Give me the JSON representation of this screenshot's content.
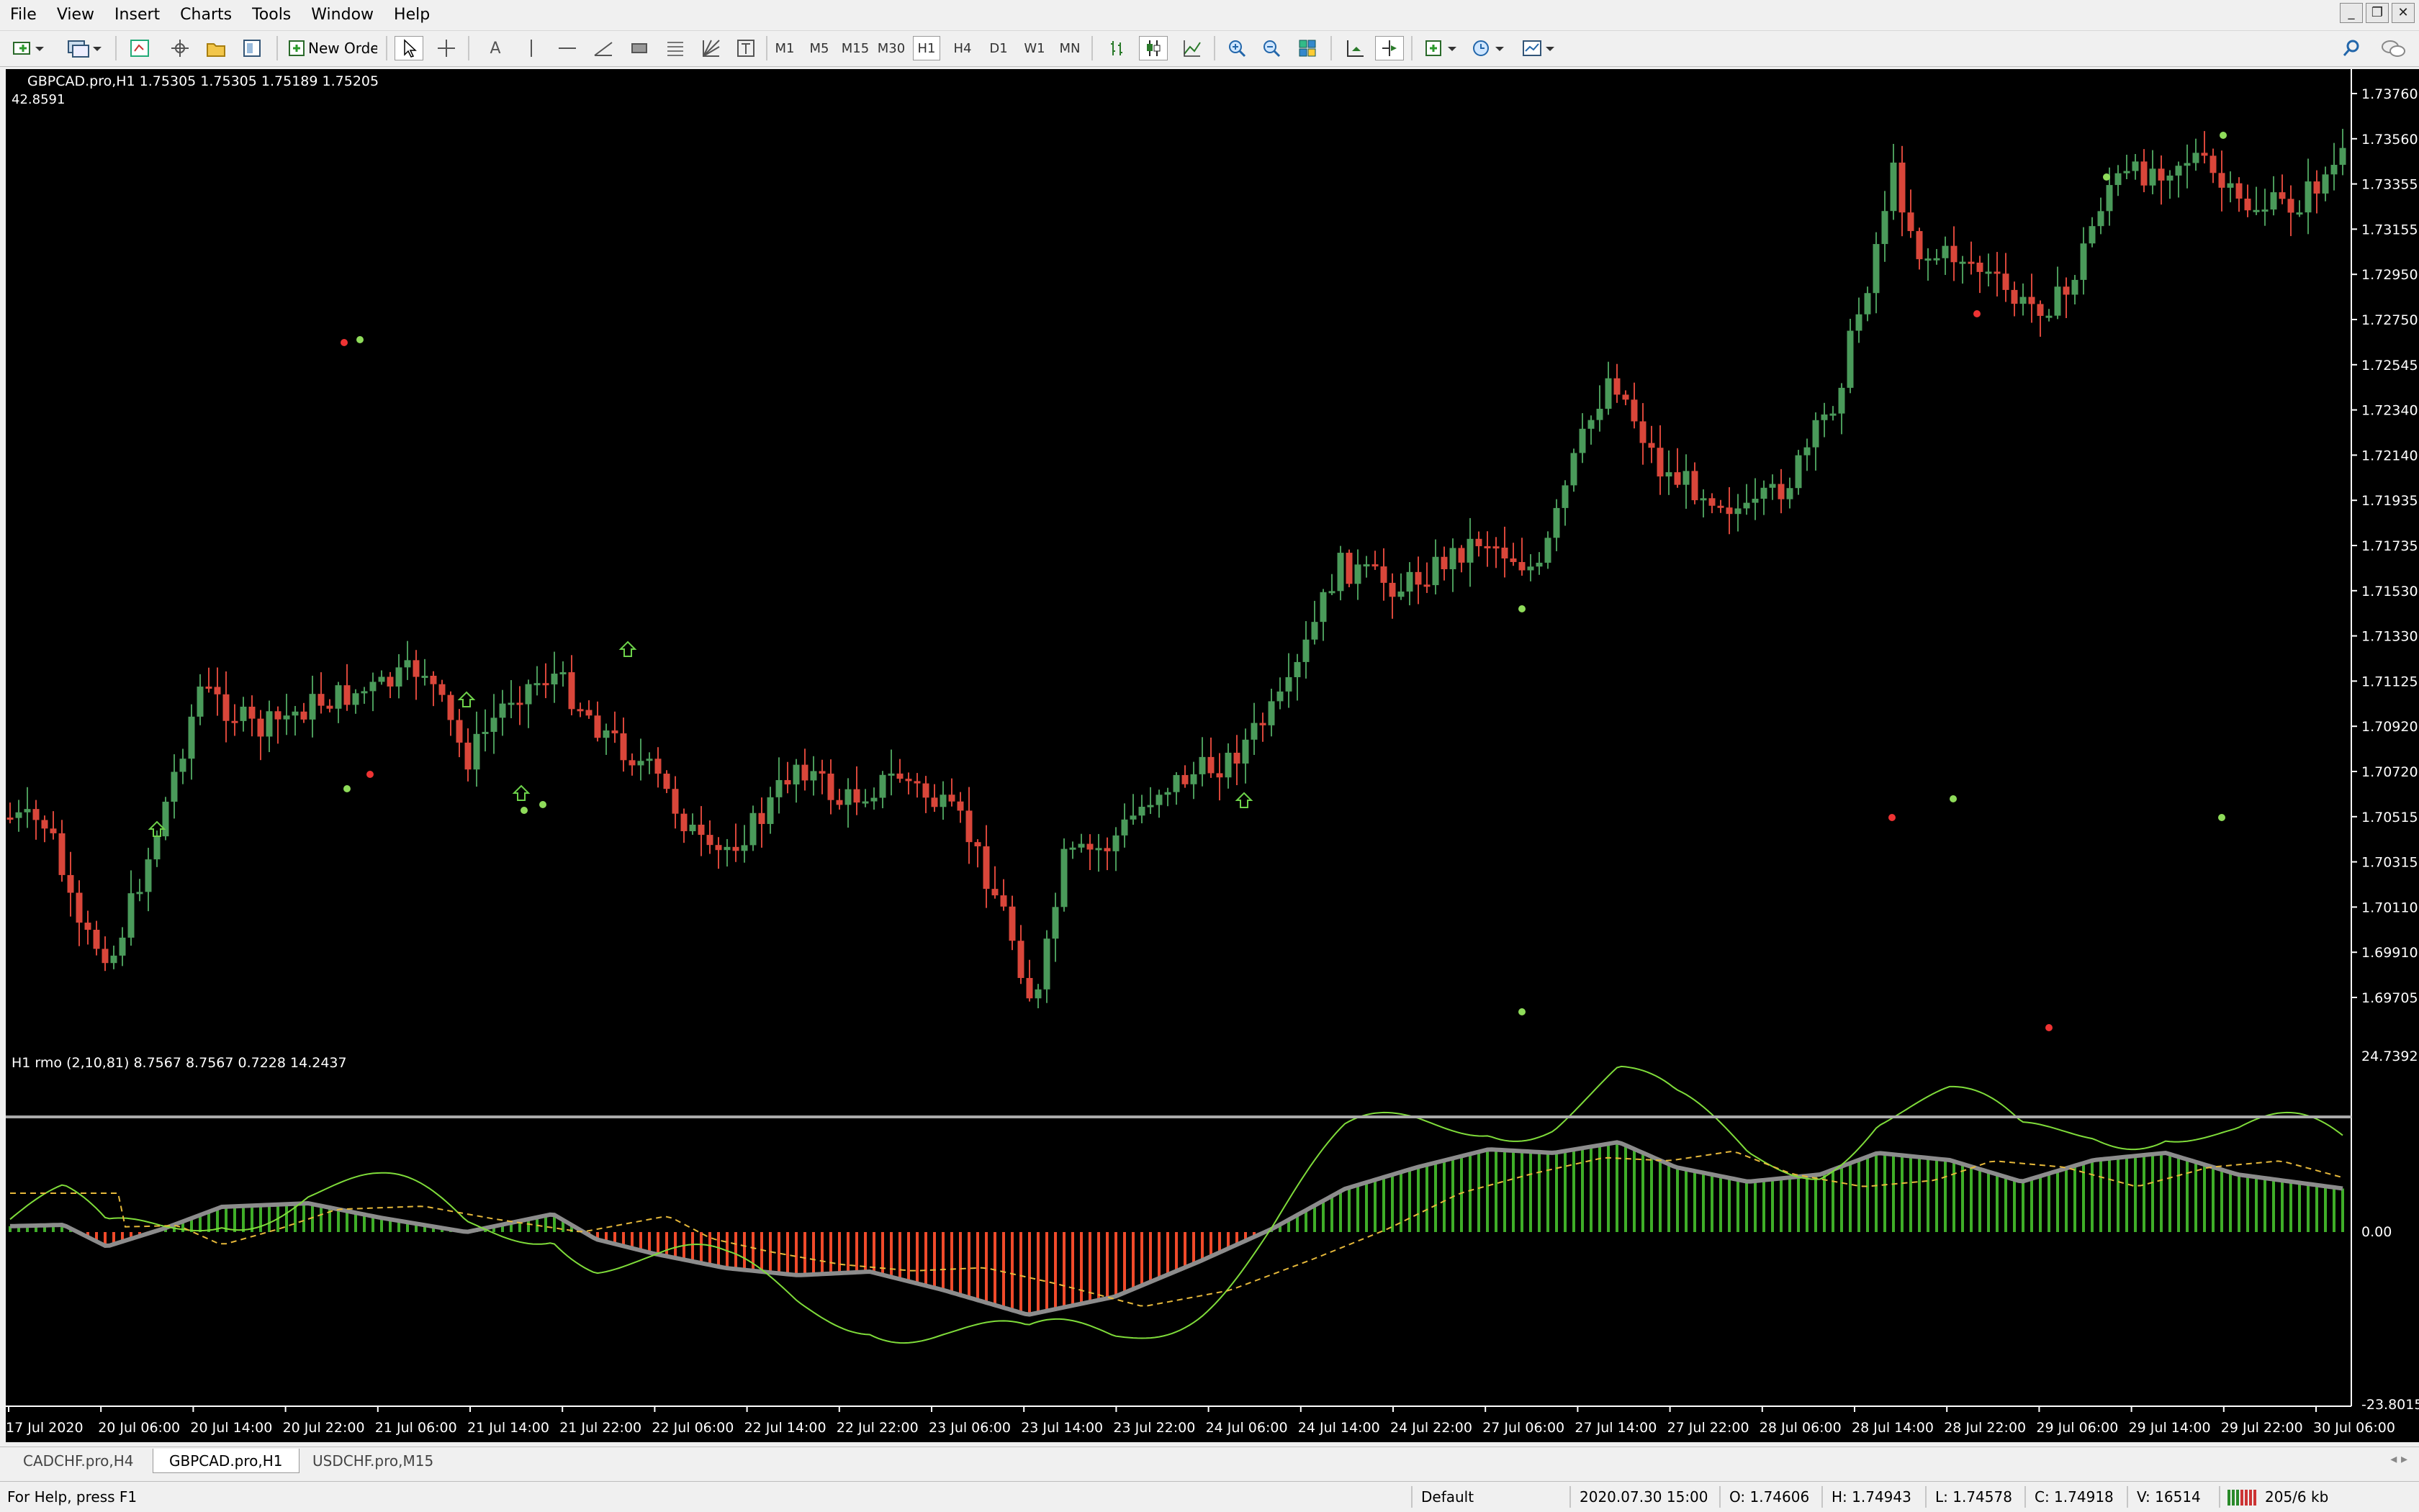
{
  "menu": [
    "File",
    "View",
    "Insert",
    "Charts",
    "Tools",
    "Window",
    "Help"
  ],
  "toolbar": {
    "new_order_label": "New Order",
    "timeframes": [
      "M1",
      "M5",
      "M15",
      "M30",
      "H1",
      "H4",
      "D1",
      "W1",
      "MN"
    ],
    "active_timeframe": "H1"
  },
  "chart": {
    "header": "GBPCAD.pro,H1  1.75305 1.75305 1.75189 1.75205",
    "sub_value": "42.8591",
    "price_axis": [
      "1.73760",
      "1.73560",
      "1.73355",
      "1.73155",
      "1.72950",
      "1.72750",
      "1.72545",
      "1.72340",
      "1.72140",
      "1.71935",
      "1.71735",
      "1.71530",
      "1.71330",
      "1.71125",
      "1.70920",
      "1.70720",
      "1.70515",
      "1.70315",
      "1.70110",
      "1.69910",
      "1.69705"
    ],
    "time_axis": [
      "17 Jul 2020",
      "20 Jul 06:00",
      "20 Jul 14:00",
      "20 Jul 22:00",
      "21 Jul 06:00",
      "21 Jul 14:00",
      "21 Jul 22:00",
      "22 Jul 06:00",
      "22 Jul 14:00",
      "22 Jul 22:00",
      "23 Jul 06:00",
      "23 Jul 14:00",
      "23 Jul 22:00",
      "24 Jul 06:00",
      "24 Jul 14:00",
      "24 Jul 22:00",
      "27 Jul 06:00",
      "27 Jul 14:00",
      "27 Jul 22:00",
      "28 Jul 06:00",
      "28 Jul 14:00",
      "28 Jul 22:00",
      "29 Jul 06:00",
      "29 Jul 14:00",
      "29 Jul 22:00",
      "30 Jul 06:00"
    ],
    "colors": {
      "bull": "#4a9a5a",
      "bear": "#d9463a",
      "hist_pos": "#3fae28",
      "hist_neg": "#f04a2a",
      "line": "#7fdc3a",
      "signal": "#e6b83a",
      "avg": "#8c8c8c"
    }
  },
  "indicator": {
    "header": "H1 rmo (2,10,81) 8.7567 8.7567 0.7228 14.2437",
    "axis": [
      "24.7392",
      "0.00",
      "-23.8015"
    ]
  },
  "tabs": [
    "CADCHF.pro,H4",
    "GBPCAD.pro,H1",
    "USDCHF.pro,M15"
  ],
  "active_tab": "GBPCAD.pro,H1",
  "status": {
    "help": "For Help, press F1",
    "profile": "Default",
    "datetime": "2020.07.30 15:00",
    "open": "O: 1.74606",
    "high": "H: 1.74943",
    "low": "L: 1.74578",
    "close": "C: 1.74918",
    "volume": "V: 16514",
    "traffic": "205/6 kb"
  }
}
